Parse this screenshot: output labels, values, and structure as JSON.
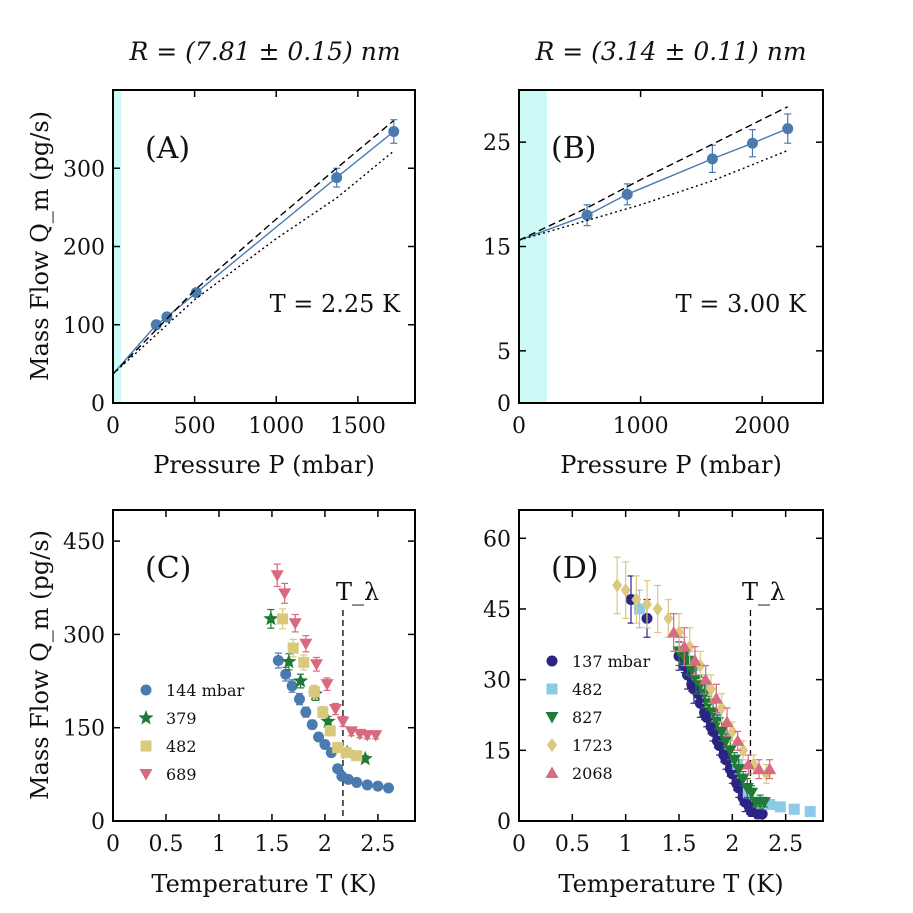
{
  "colors": {
    "blue": "#4a7bb0",
    "green": "#1f7a35",
    "yellow": "#d9c97a",
    "pink": "#d8697e",
    "navy": "#2b2484",
    "lightblue": "#8ccaea",
    "tan": "#ddc880",
    "cyanband": "#ccfbf7"
  },
  "chart_data": [
    {
      "id": "A",
      "type": "line",
      "panel_label": "(A)",
      "title": "R = (7.81 ± 0.15) nm",
      "annotation": "T = 2.25 K",
      "xlabel": "Pressure P (mbar)",
      "ylabel": "Mass Flow Q_m (pg/s)",
      "xlim": [
        0,
        1850
      ],
      "ylim": [
        0,
        400
      ],
      "xticks": [
        0,
        500,
        1000,
        1500
      ],
      "yticks": [
        0,
        100,
        200,
        300
      ],
      "band": [
        0,
        50
      ],
      "series": [
        {
          "name": "data",
          "kind": "points",
          "color": "#4a7bb0",
          "x": [
            265,
            330,
            510,
            1370,
            1720
          ],
          "y": [
            100,
            110,
            141,
            288,
            347
          ],
          "err": [
            4,
            4,
            5,
            12,
            15
          ]
        },
        {
          "name": "fit",
          "kind": "line",
          "style": "solid",
          "color": "#4a7bb0",
          "x": [
            0,
            265,
            330,
            510,
            1370,
            1720
          ],
          "y": [
            37,
            100,
            110,
            141,
            288,
            347
          ]
        },
        {
          "name": "upper",
          "kind": "line",
          "style": "dashed",
          "color": "#000000",
          "x": [
            0,
            500,
            1000,
            1370,
            1720
          ],
          "y": [
            37,
            144,
            235,
            300,
            361
          ]
        },
        {
          "name": "lower",
          "kind": "line",
          "style": "dotted",
          "color": "#000000",
          "x": [
            0,
            500,
            1000,
            1370,
            1720
          ],
          "y": [
            37,
            132,
            210,
            262,
            322
          ]
        }
      ]
    },
    {
      "id": "B",
      "type": "line",
      "panel_label": "(B)",
      "title": "R = (3.14 ± 0.11) nm",
      "annotation": "T = 3.00 K",
      "xlabel": "Pressure P (mbar)",
      "ylabel": "",
      "xlim": [
        0,
        2500
      ],
      "ylim": [
        0,
        30
      ],
      "xticks": [
        0,
        1000,
        2000
      ],
      "yticks": [
        0,
        5,
        15,
        25
      ],
      "band": [
        0,
        230
      ],
      "series": [
        {
          "name": "data",
          "kind": "points",
          "color": "#4a7bb0",
          "x": [
            560,
            890,
            1590,
            1920,
            2210
          ],
          "y": [
            18.0,
            20.0,
            23.4,
            24.9,
            26.3
          ],
          "err": [
            1.0,
            1.0,
            1.3,
            1.3,
            1.4
          ]
        },
        {
          "name": "fit",
          "kind": "line",
          "style": "solid",
          "color": "#4a7bb0",
          "x": [
            0,
            560,
            890,
            1590,
            1920,
            2210
          ],
          "y": [
            15.6,
            18.0,
            20.0,
            23.4,
            24.9,
            26.3
          ]
        },
        {
          "name": "upper",
          "kind": "line",
          "style": "dashed",
          "color": "#000000",
          "x": [
            0,
            560,
            1000,
            1590,
            2210
          ],
          "y": [
            15.6,
            18.7,
            21.4,
            24.8,
            28.4
          ]
        },
        {
          "name": "lower",
          "kind": "line",
          "style": "dotted",
          "color": "#000000",
          "x": [
            0,
            560,
            1000,
            1590,
            2210
          ],
          "y": [
            15.6,
            17.5,
            19.0,
            21.3,
            24.2
          ]
        }
      ]
    },
    {
      "id": "C",
      "type": "scatter",
      "panel_label": "(C)",
      "annotation": "T_λ",
      "xlabel": "Temperature T (K)",
      "ylabel": "Mass Flow Q_m (pg/s)",
      "xlim": [
        0,
        2.85
      ],
      "ylim": [
        0,
        500
      ],
      "xticks": [
        0,
        0.5,
        1,
        1.5,
        2,
        2.5
      ],
      "xticklabels": [
        "0",
        "0.5",
        "1",
        "1.5",
        "2",
        "2.5"
      ],
      "yticks": [
        0,
        150,
        300,
        450
      ],
      "vline": 2.17,
      "legend_position": "left",
      "series": [
        {
          "name": "144 mbar",
          "marker": "circle",
          "color": "#4a7bb0",
          "x": [
            1.56,
            1.63,
            1.69,
            1.76,
            1.82,
            1.88,
            1.94,
            2.0,
            2.06,
            2.12,
            2.16,
            2.22,
            2.3,
            2.4,
            2.5,
            2.6
          ],
          "y": [
            258,
            236,
            217,
            196,
            175,
            155,
            135,
            123,
            110,
            84,
            72,
            67,
            62,
            58,
            56,
            53
          ],
          "err": [
            12,
            11,
            10,
            9,
            8,
            7,
            6,
            6,
            5,
            5,
            4,
            3,
            3,
            3,
            3,
            3
          ]
        },
        {
          "name": "379",
          "marker": "star",
          "color": "#1f7a35",
          "x": [
            1.49,
            1.66,
            1.77,
            1.91,
            2.03,
            2.21,
            2.38
          ],
          "y": [
            325,
            256,
            225,
            204,
            160,
            110,
            100
          ],
          "err": [
            15,
            13,
            11,
            10,
            8,
            6,
            5
          ]
        },
        {
          "name": "482",
          "marker": "square",
          "color": "#d9c97a",
          "x": [
            1.6,
            1.7,
            1.8,
            1.9,
            1.98,
            2.05,
            2.12,
            2.2,
            2.3
          ],
          "y": [
            325,
            278,
            255,
            208,
            175,
            145,
            118,
            110,
            105
          ],
          "err": [
            16,
            14,
            12,
            10,
            9,
            8,
            7,
            6,
            5
          ]
        },
        {
          "name": "689",
          "marker": "triangle-down",
          "color": "#d8697e",
          "x": [
            1.55,
            1.62,
            1.72,
            1.82,
            1.92,
            2.02,
            2.1,
            2.17,
            2.25,
            2.33,
            2.4,
            2.48
          ],
          "y": [
            395,
            366,
            318,
            285,
            252,
            220,
            180,
            160,
            144,
            140,
            138,
            138
          ],
          "err": [
            18,
            16,
            14,
            13,
            11,
            10,
            9,
            8,
            7,
            6,
            6,
            6
          ]
        }
      ]
    },
    {
      "id": "D",
      "type": "scatter",
      "panel_label": "(D)",
      "annotation": "T_λ",
      "xlabel": "Temperature T (K)",
      "ylabel": "",
      "xlim": [
        0,
        2.85
      ],
      "ylim": [
        0,
        66
      ],
      "xticks": [
        0,
        0.5,
        1,
        1.5,
        2,
        2.5
      ],
      "xticklabels": [
        "0",
        "0.5",
        "1",
        "1.5",
        "2",
        "2.5"
      ],
      "yticks": [
        0,
        15,
        30,
        45,
        60
      ],
      "vline": 2.17,
      "legend_position": "left",
      "series": [
        {
          "name": "137 mbar",
          "marker": "circle",
          "color": "#2b2484",
          "x": [
            1.05,
            1.2,
            1.5,
            1.58,
            1.64,
            1.7,
            1.76,
            1.82,
            1.88,
            1.94,
            2.0,
            2.06,
            2.12,
            2.18,
            2.24
          ],
          "y": [
            47,
            43,
            35,
            31,
            28,
            25,
            22,
            19,
            16,
            13,
            10,
            7,
            4,
            2,
            1.5
          ],
          "err": [
            5,
            4,
            3,
            3,
            3,
            3,
            2,
            2,
            2,
            2,
            2,
            2,
            2,
            1,
            1
          ],
          "extra": [
            [
              1.55,
              33
            ],
            [
              1.62,
              29
            ],
            [
              1.68,
              27
            ],
            [
              1.74,
              23
            ],
            [
              1.8,
              20
            ],
            [
              1.86,
              17
            ],
            [
              1.92,
              14
            ],
            [
              1.98,
              11
            ],
            [
              2.04,
              8
            ],
            [
              2.1,
              5
            ],
            [
              2.16,
              3
            ],
            [
              2.28,
              1.5
            ]
          ]
        },
        {
          "name": "482",
          "marker": "square",
          "color": "#8ccaea",
          "x": [
            1.13,
            1.55,
            1.65,
            1.75,
            1.85,
            1.95,
            2.05,
            2.15,
            2.25,
            2.35,
            2.45,
            2.58,
            2.73
          ],
          "y": [
            45,
            36,
            33,
            28,
            23,
            18,
            12,
            6,
            4,
            3.5,
            3,
            2.5,
            2
          ],
          "err": [
            4,
            3,
            3,
            3,
            2,
            2,
            2,
            1,
            1,
            1,
            1,
            1,
            1
          ]
        },
        {
          "name": "827",
          "marker": "triangle-down",
          "color": "#1f7a35",
          "x": [
            1.5,
            1.58,
            1.66,
            1.74,
            1.82,
            1.9,
            1.98,
            2.06,
            2.14,
            2.22,
            2.3
          ],
          "y": [
            36,
            34,
            30,
            27,
            23,
            19,
            15,
            11,
            7,
            4,
            4
          ],
          "err": [
            3,
            3,
            3,
            3,
            2,
            2,
            2,
            2,
            2,
            1,
            1
          ],
          "extra": [
            [
              1.54,
              35
            ],
            [
              1.62,
              32
            ],
            [
              1.7,
              29
            ],
            [
              1.78,
              25
            ],
            [
              1.86,
              21
            ],
            [
              1.94,
              17
            ],
            [
              2.02,
              13
            ],
            [
              2.1,
              9
            ],
            [
              2.18,
              6
            ],
            [
              2.26,
              4
            ]
          ]
        },
        {
          "name": "1723",
          "marker": "diamond",
          "color": "#ddc880",
          "x": [
            0.92,
            1.0,
            1.1,
            1.2,
            1.3,
            1.4,
            1.5,
            1.6,
            1.7,
            1.8,
            1.9,
            2.0,
            2.1,
            2.2,
            2.32
          ],
          "y": [
            50,
            49,
            47,
            46,
            45,
            43,
            40,
            37,
            33,
            28,
            24,
            19,
            15,
            12,
            10
          ],
          "err": [
            6,
            6,
            5,
            5,
            5,
            4,
            4,
            4,
            3,
            3,
            3,
            2,
            2,
            2,
            2
          ]
        },
        {
          "name": "2068",
          "marker": "triangle-up",
          "color": "#d8697e",
          "x": [
            1.45,
            1.55,
            1.65,
            1.75,
            1.85,
            1.95,
            2.05,
            2.15,
            2.25,
            2.35
          ],
          "y": [
            40,
            37,
            34,
            30,
            26,
            21,
            17,
            12,
            11,
            11
          ],
          "err": [
            4,
            4,
            3,
            3,
            3,
            3,
            2,
            2,
            2,
            2
          ]
        }
      ]
    }
  ]
}
